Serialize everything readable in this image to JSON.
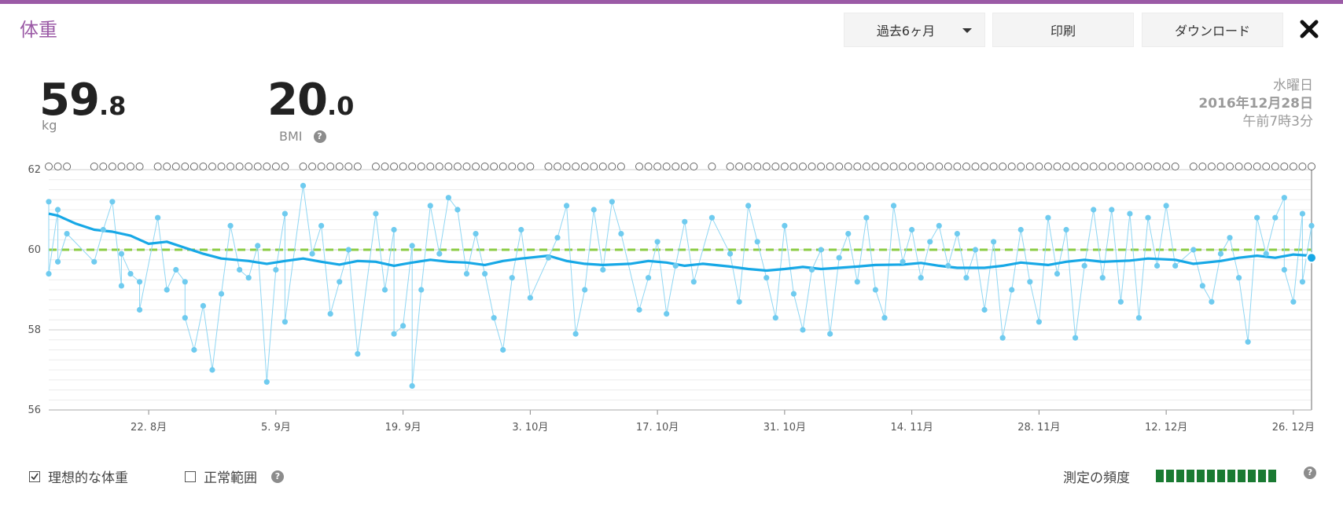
{
  "header": {
    "title": "体重",
    "range_label": "過去6ヶ月",
    "print_label": "印刷",
    "download_label": "ダウンロード"
  },
  "metrics": {
    "weight_int": "59",
    "weight_dec": ".8",
    "weight_unit": "kg",
    "bmi_int": "20",
    "bmi_dec": ".0",
    "bmi_label": "BMI"
  },
  "measurement": {
    "weekday": "水曜日",
    "date": "2016年12月28日",
    "time": "午前7時3分"
  },
  "footer": {
    "ideal_weight_label": "理想的な体重",
    "ideal_weight_checked": true,
    "normal_range_label": "正常範囲",
    "normal_range_checked": false,
    "frequency_label": "測定の頻度",
    "frequency_level": 12,
    "help_glyph": "?"
  },
  "colors": {
    "accent": "#9b5aa6",
    "series_line": "#17a8e6",
    "points": "#6fcbef",
    "target_line": "#8ccc44",
    "frequency": "#1a7a32"
  },
  "chart_data": {
    "type": "line",
    "xlabel": "",
    "ylabel": "",
    "ylim": [
      56,
      62
    ],
    "yticks": [
      56,
      58,
      60,
      62
    ],
    "x_start": "2016-08-11",
    "x_end": "2016-12-28",
    "xticks": [
      "2016-08-22",
      "2016-09-05",
      "2016-09-19",
      "2016-10-03",
      "2016-10-17",
      "2016-10-31",
      "2016-11-14",
      "2016-11-28",
      "2016-12-12",
      "2016-12-26"
    ],
    "xtick_labels": [
      "22. 8月",
      "5. 9月",
      "19. 9月",
      "3. 10月",
      "17. 10月",
      "31. 10月",
      "14. 11月",
      "28. 11月",
      "12. 12月",
      "26. 12月"
    ],
    "grid": true,
    "target_weight": 60.0,
    "series": [
      {
        "kind": "trend",
        "points": [
          [
            "2016-08-11",
            60.9
          ],
          [
            "2016-08-12",
            60.85
          ],
          [
            "2016-08-14",
            60.65
          ],
          [
            "2016-08-16",
            60.5
          ],
          [
            "2016-08-18",
            60.45
          ],
          [
            "2016-08-20",
            60.35
          ],
          [
            "2016-08-22",
            60.15
          ],
          [
            "2016-08-24",
            60.2
          ],
          [
            "2016-08-26",
            60.05
          ],
          [
            "2016-08-28",
            59.9
          ],
          [
            "2016-08-30",
            59.78
          ],
          [
            "2016-09-02",
            59.72
          ],
          [
            "2016-09-04",
            59.65
          ],
          [
            "2016-09-06",
            59.72
          ],
          [
            "2016-09-08",
            59.78
          ],
          [
            "2016-09-10",
            59.7
          ],
          [
            "2016-09-12",
            59.63
          ],
          [
            "2016-09-14",
            59.72
          ],
          [
            "2016-09-16",
            59.7
          ],
          [
            "2016-09-18",
            59.6
          ],
          [
            "2016-09-20",
            59.68
          ],
          [
            "2016-09-22",
            59.75
          ],
          [
            "2016-09-24",
            59.7
          ],
          [
            "2016-09-26",
            59.68
          ],
          [
            "2016-09-28",
            59.62
          ],
          [
            "2016-09-30",
            59.72
          ],
          [
            "2016-10-02",
            59.78
          ],
          [
            "2016-10-05",
            59.85
          ],
          [
            "2016-10-07",
            59.72
          ],
          [
            "2016-10-09",
            59.65
          ],
          [
            "2016-10-11",
            59.62
          ],
          [
            "2016-10-14",
            59.65
          ],
          [
            "2016-10-16",
            59.72
          ],
          [
            "2016-10-18",
            59.68
          ],
          [
            "2016-10-20",
            59.6
          ],
          [
            "2016-10-22",
            59.65
          ],
          [
            "2016-10-25",
            59.58
          ],
          [
            "2016-10-27",
            59.52
          ],
          [
            "2016-10-29",
            59.48
          ],
          [
            "2016-10-31",
            59.52
          ],
          [
            "2016-11-02",
            59.57
          ],
          [
            "2016-11-04",
            59.52
          ],
          [
            "2016-11-06",
            59.55
          ],
          [
            "2016-11-08",
            59.58
          ],
          [
            "2016-11-10",
            59.62
          ],
          [
            "2016-11-13",
            59.63
          ],
          [
            "2016-11-15",
            59.67
          ],
          [
            "2016-11-17",
            59.6
          ],
          [
            "2016-11-19",
            59.55
          ],
          [
            "2016-11-22",
            59.55
          ],
          [
            "2016-11-24",
            59.6
          ],
          [
            "2016-11-26",
            59.68
          ],
          [
            "2016-11-29",
            59.62
          ],
          [
            "2016-12-01",
            59.7
          ],
          [
            "2016-12-03",
            59.75
          ],
          [
            "2016-12-05",
            59.7
          ],
          [
            "2016-12-08",
            59.73
          ],
          [
            "2016-12-10",
            59.78
          ],
          [
            "2016-12-13",
            59.75
          ],
          [
            "2016-12-15",
            59.65
          ],
          [
            "2016-12-18",
            59.72
          ],
          [
            "2016-12-20",
            59.8
          ],
          [
            "2016-12-22",
            59.85
          ],
          [
            "2016-12-24",
            59.8
          ],
          [
            "2016-12-26",
            59.88
          ],
          [
            "2016-12-28",
            59.85
          ]
        ]
      },
      {
        "kind": "measurements",
        "points": [
          [
            "2016-08-11",
            61.2
          ],
          [
            "2016-08-11",
            59.4
          ],
          [
            "2016-08-12",
            61.0
          ],
          [
            "2016-08-12",
            59.7
          ],
          [
            "2016-08-13",
            60.4
          ],
          [
            "2016-08-16",
            59.7
          ],
          [
            "2016-08-17",
            60.5
          ],
          [
            "2016-08-18",
            61.2
          ],
          [
            "2016-08-19",
            59.1
          ],
          [
            "2016-08-19",
            59.9
          ],
          [
            "2016-08-20",
            59.4
          ],
          [
            "2016-08-21",
            59.2
          ],
          [
            "2016-08-21",
            58.5
          ],
          [
            "2016-08-23",
            60.8
          ],
          [
            "2016-08-24",
            59.0
          ],
          [
            "2016-08-25",
            59.5
          ],
          [
            "2016-08-26",
            59.2
          ],
          [
            "2016-08-26",
            58.3
          ],
          [
            "2016-08-27",
            57.5
          ],
          [
            "2016-08-28",
            58.6
          ],
          [
            "2016-08-29",
            57.0
          ],
          [
            "2016-08-30",
            58.9
          ],
          [
            "2016-08-31",
            60.6
          ],
          [
            "2016-09-01",
            59.5
          ],
          [
            "2016-09-02",
            59.3
          ],
          [
            "2016-09-03",
            60.1
          ],
          [
            "2016-09-04",
            56.7
          ],
          [
            "2016-09-05",
            59.5
          ],
          [
            "2016-09-06",
            60.9
          ],
          [
            "2016-09-06",
            58.2
          ],
          [
            "2016-09-08",
            61.6
          ],
          [
            "2016-09-09",
            59.9
          ],
          [
            "2016-09-10",
            60.6
          ],
          [
            "2016-09-11",
            58.4
          ],
          [
            "2016-09-12",
            59.2
          ],
          [
            "2016-09-13",
            60.0
          ],
          [
            "2016-09-14",
            57.4
          ],
          [
            "2016-09-16",
            60.9
          ],
          [
            "2016-09-17",
            59.0
          ],
          [
            "2016-09-18",
            60.5
          ],
          [
            "2016-09-18",
            57.9
          ],
          [
            "2016-09-19",
            58.1
          ],
          [
            "2016-09-20",
            60.1
          ],
          [
            "2016-09-20",
            56.6
          ],
          [
            "2016-09-21",
            59.0
          ],
          [
            "2016-09-22",
            61.1
          ],
          [
            "2016-09-23",
            59.9
          ],
          [
            "2016-09-24",
            61.3
          ],
          [
            "2016-09-25",
            61.0
          ],
          [
            "2016-09-26",
            59.4
          ],
          [
            "2016-09-27",
            60.4
          ],
          [
            "2016-09-28",
            59.4
          ],
          [
            "2016-09-29",
            58.3
          ],
          [
            "2016-09-30",
            57.5
          ],
          [
            "2016-10-01",
            59.3
          ],
          [
            "2016-10-02",
            60.5
          ],
          [
            "2016-10-03",
            58.8
          ],
          [
            "2016-10-05",
            59.8
          ],
          [
            "2016-10-06",
            60.3
          ],
          [
            "2016-10-07",
            61.1
          ],
          [
            "2016-10-08",
            57.9
          ],
          [
            "2016-10-09",
            59.0
          ],
          [
            "2016-10-10",
            61.0
          ],
          [
            "2016-10-11",
            59.5
          ],
          [
            "2016-10-12",
            61.2
          ],
          [
            "2016-10-13",
            60.4
          ],
          [
            "2016-10-15",
            58.5
          ],
          [
            "2016-10-16",
            59.3
          ],
          [
            "2016-10-17",
            60.2
          ],
          [
            "2016-10-18",
            58.4
          ],
          [
            "2016-10-19",
            59.6
          ],
          [
            "2016-10-20",
            60.7
          ],
          [
            "2016-10-21",
            59.2
          ],
          [
            "2016-10-23",
            60.8
          ],
          [
            "2016-10-25",
            59.9
          ],
          [
            "2016-10-26",
            58.7
          ],
          [
            "2016-10-27",
            61.1
          ],
          [
            "2016-10-28",
            60.2
          ],
          [
            "2016-10-29",
            59.3
          ],
          [
            "2016-10-30",
            58.3
          ],
          [
            "2016-10-31",
            60.6
          ],
          [
            "2016-11-01",
            58.9
          ],
          [
            "2016-11-02",
            58.0
          ],
          [
            "2016-11-03",
            59.5
          ],
          [
            "2016-11-04",
            60.0
          ],
          [
            "2016-11-05",
            57.9
          ],
          [
            "2016-11-06",
            59.8
          ],
          [
            "2016-11-07",
            60.4
          ],
          [
            "2016-11-08",
            59.2
          ],
          [
            "2016-11-09",
            60.8
          ],
          [
            "2016-11-10",
            59.0
          ],
          [
            "2016-11-11",
            58.3
          ],
          [
            "2016-11-12",
            61.1
          ],
          [
            "2016-11-13",
            59.7
          ],
          [
            "2016-11-14",
            60.5
          ],
          [
            "2016-11-15",
            59.3
          ],
          [
            "2016-11-16",
            60.2
          ],
          [
            "2016-11-17",
            60.6
          ],
          [
            "2016-11-18",
            59.6
          ],
          [
            "2016-11-19",
            60.4
          ],
          [
            "2016-11-20",
            59.3
          ],
          [
            "2016-11-21",
            60.0
          ],
          [
            "2016-11-22",
            58.5
          ],
          [
            "2016-11-23",
            60.2
          ],
          [
            "2016-11-24",
            57.8
          ],
          [
            "2016-11-25",
            59.0
          ],
          [
            "2016-11-26",
            60.5
          ],
          [
            "2016-11-27",
            59.2
          ],
          [
            "2016-11-28",
            58.2
          ],
          [
            "2016-11-29",
            60.8
          ],
          [
            "2016-11-30",
            59.4
          ],
          [
            "2016-12-01",
            60.5
          ],
          [
            "2016-12-02",
            57.8
          ],
          [
            "2016-12-03",
            59.6
          ],
          [
            "2016-12-04",
            61.0
          ],
          [
            "2016-12-05",
            59.3
          ],
          [
            "2016-12-06",
            61.0
          ],
          [
            "2016-12-07",
            58.7
          ],
          [
            "2016-12-08",
            60.9
          ],
          [
            "2016-12-09",
            58.3
          ],
          [
            "2016-12-10",
            60.8
          ],
          [
            "2016-12-11",
            59.6
          ],
          [
            "2016-12-12",
            61.1
          ],
          [
            "2016-12-13",
            59.6
          ],
          [
            "2016-12-15",
            60.0
          ],
          [
            "2016-12-16",
            59.1
          ],
          [
            "2016-12-17",
            58.7
          ],
          [
            "2016-12-18",
            59.9
          ],
          [
            "2016-12-19",
            60.3
          ],
          [
            "2016-12-20",
            59.3
          ],
          [
            "2016-12-21",
            57.7
          ],
          [
            "2016-12-22",
            60.8
          ],
          [
            "2016-12-23",
            59.9
          ],
          [
            "2016-12-24",
            60.8
          ],
          [
            "2016-12-25",
            61.3
          ],
          [
            "2016-12-25",
            59.5
          ],
          [
            "2016-12-26",
            58.7
          ],
          [
            "2016-12-27",
            60.9
          ],
          [
            "2016-12-27",
            59.2
          ],
          [
            "2016-12-28",
            60.6
          ],
          [
            "2016-12-28",
            59.8
          ]
        ]
      }
    ]
  }
}
